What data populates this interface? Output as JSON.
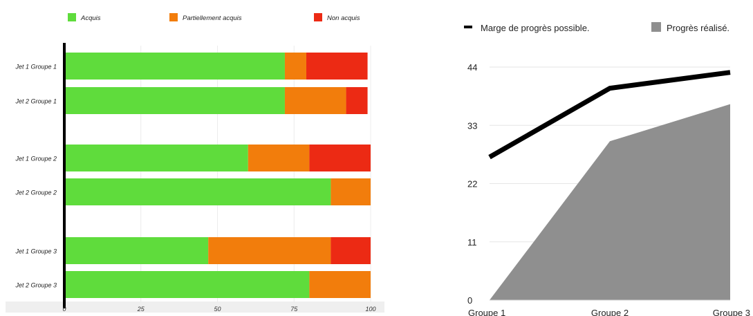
{
  "chart_data": [
    {
      "type": "bar",
      "orientation": "horizontal",
      "stacked": true,
      "categories": [
        "Jet 1 Groupe 1",
        "Jet 2 Groupe 1",
        "Jet 1 Groupe 2",
        "Jet 2 Groupe 2",
        "Jet 1 Groupe 3",
        "Jet 2 Groupe 3"
      ],
      "series": [
        {
          "name": "Acquis",
          "color": "#5fdc3c",
          "values": [
            72,
            72,
            60,
            87,
            47,
            80
          ]
        },
        {
          "name": "Partiellement acquis",
          "color": "#f27d0c",
          "values": [
            7,
            20,
            20,
            13,
            40,
            20
          ]
        },
        {
          "name": "Non acquis",
          "color": "#ec2a14",
          "values": [
            20,
            7,
            20,
            0,
            13,
            0
          ]
        }
      ],
      "xlim": [
        0,
        100
      ],
      "xticks": [
        "0",
        "25",
        "50",
        "75",
        "100"
      ],
      "legend": "top",
      "grid": true
    },
    {
      "type": "line",
      "categories": [
        "Groupe 1",
        "Groupe 2",
        "Groupe 3"
      ],
      "series": [
        {
          "name": "Marge de progrès possible.",
          "kind": "line",
          "color": "#000000",
          "values": [
            27,
            40,
            43
          ]
        },
        {
          "name": "Progrès réalisé.",
          "kind": "area",
          "color": "#8f8f8f",
          "values": [
            0,
            30,
            37
          ]
        }
      ],
      "ylim": [
        0,
        45
      ],
      "yticks": [
        "0",
        "11",
        "22",
        "33",
        "44"
      ],
      "legend": "top",
      "grid": true
    }
  ]
}
